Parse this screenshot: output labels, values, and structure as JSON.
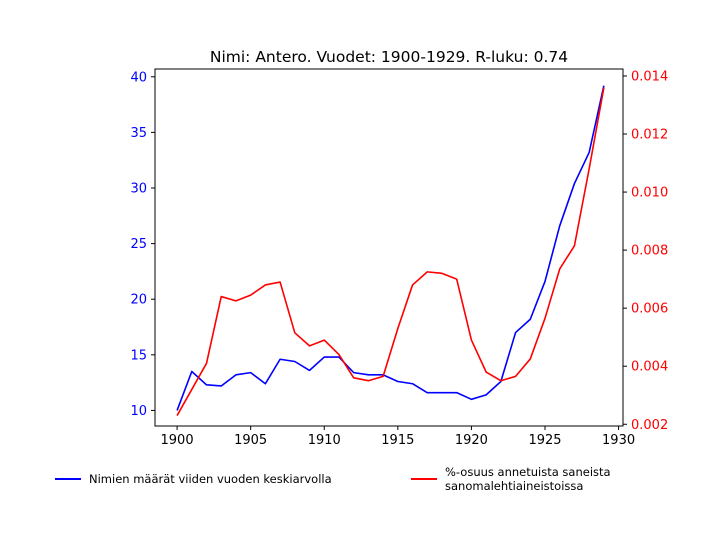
{
  "chart_data": {
    "type": "line",
    "title": "Nimi: Antero. Vuodet: 1900-1929. R-luku: 0.74",
    "x": [
      1900,
      1901,
      1902,
      1903,
      1904,
      1905,
      1906,
      1907,
      1908,
      1909,
      1910,
      1911,
      1912,
      1913,
      1914,
      1915,
      1916,
      1917,
      1918,
      1919,
      1920,
      1921,
      1922,
      1923,
      1924,
      1925,
      1926,
      1927,
      1928,
      1929
    ],
    "xlim": [
      1898.5,
      1930.3
    ],
    "x_ticks": [
      "1900",
      "1905",
      "1910",
      "1915",
      "1920",
      "1925",
      "1930"
    ],
    "y_left": {
      "ylim": [
        8.6,
        40.7
      ],
      "ticks": [
        "10",
        "15",
        "20",
        "25",
        "30",
        "35",
        "40"
      ],
      "color": "#0000ff"
    },
    "y_right": {
      "ylim": [
        0.00194,
        0.01424
      ],
      "ticks": [
        "0.002",
        "0.004",
        "0.006",
        "0.008",
        "0.010",
        "0.012",
        "0.014"
      ],
      "color": "#ff0000"
    },
    "series": [
      {
        "name": "Nimien määrät viiden vuoden keskiarvolla",
        "axis": "left",
        "color": "#0000ff",
        "values": [
          10.0,
          13.5,
          12.3,
          12.2,
          13.2,
          13.4,
          12.4,
          14.6,
          14.4,
          13.6,
          14.8,
          14.8,
          13.4,
          13.2,
          13.2,
          12.6,
          12.4,
          11.6,
          11.6,
          11.6,
          11.0,
          11.4,
          12.6,
          17.0,
          18.2,
          21.6,
          26.6,
          30.4,
          33.2,
          39.2
        ]
      },
      {
        "name": "%-osuus annetuista saneista\n sanomalehtiaineistoissa",
        "axis": "right",
        "color": "#ff0000",
        "values": [
          0.0023,
          0.0032,
          0.0041,
          0.0064,
          0.00625,
          0.00645,
          0.0068,
          0.0069,
          0.00515,
          0.0047,
          0.0049,
          0.0044,
          0.0036,
          0.0035,
          0.00365,
          0.0053,
          0.0068,
          0.00725,
          0.0072,
          0.007,
          0.0049,
          0.0038,
          0.0035,
          0.00365,
          0.00425,
          0.00565,
          0.00735,
          0.00815,
          0.0108,
          0.0136
        ]
      }
    ],
    "legend_placement": "bottom",
    "grid": false
  }
}
